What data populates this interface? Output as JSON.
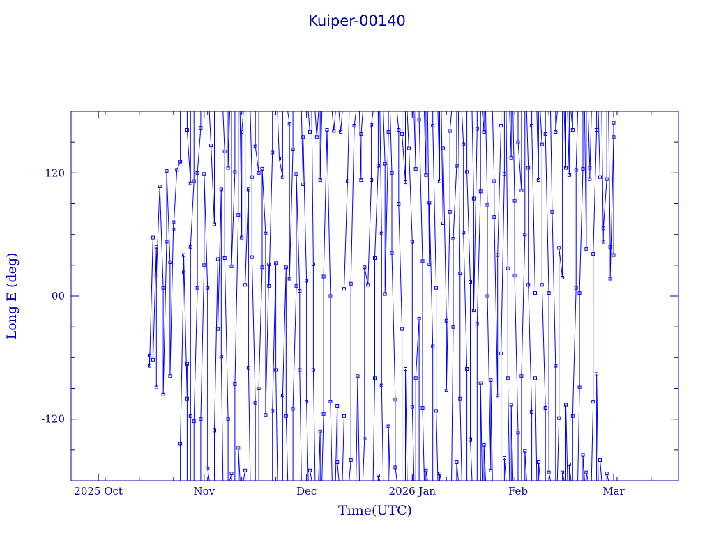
{
  "chart_data": {
    "type": "line",
    "title": "Kuiper-00140",
    "xlabel": "Time(UTC)",
    "ylabel": "Long E (deg)",
    "x_range": [
      "2025-09-23",
      "2026-03-20"
    ],
    "ylim": [
      -180,
      180
    ],
    "x_ticks": [
      {
        "date": "2025-10-01",
        "label": "2025 Oct"
      },
      {
        "date": "2025-11-01",
        "label": "Nov"
      },
      {
        "date": "2025-12-01",
        "label": "Dec"
      },
      {
        "date": "2026-01-01",
        "label": "2026 Jan"
      },
      {
        "date": "2026-02-01",
        "label": "Feb"
      },
      {
        "date": "2026-03-01",
        "label": "Mar"
      }
    ],
    "y_ticks": [
      {
        "value": 120,
        "label": "120"
      },
      {
        "value": 0,
        "label": "00"
      },
      {
        "value": -120,
        "label": "-120"
      }
    ],
    "grid": false,
    "legend": "none",
    "marker": "open-square",
    "series": [
      {
        "values": [
          [
            "2025-10-16",
            -58
          ],
          [
            "2025-10-16",
            -68
          ],
          [
            "2025-10-17",
            57
          ],
          [
            "2025-10-17",
            -62
          ],
          [
            "2025-10-18",
            48
          ],
          [
            "2025-10-18",
            -89
          ],
          [
            "2025-10-18",
            20
          ],
          [
            "2025-10-19",
            107
          ],
          [
            "2025-10-20",
            8
          ],
          [
            "2025-10-20",
            -96
          ],
          [
            "2025-10-21",
            53
          ],
          [
            "2025-10-21",
            122
          ],
          [
            "2025-10-22",
            33
          ],
          [
            "2025-10-22",
            -78
          ],
          [
            "2025-10-23",
            72
          ],
          [
            "2025-10-23",
            65
          ],
          [
            "2025-10-24",
            123
          ],
          [
            "2025-10-25",
            131
          ],
          [
            "2025-10-25",
            -144
          ],
          [
            "2025-10-26",
            23
          ],
          [
            "2025-10-26",
            40
          ],
          [
            "2025-10-27",
            -100
          ],
          [
            "2025-10-27",
            -66
          ],
          [
            "2025-10-27",
            162
          ],
          [
            "2025-10-28",
            110
          ],
          [
            "2025-10-28",
            -117
          ],
          [
            "2025-10-28",
            48
          ],
          [
            "2025-10-29",
            112
          ],
          [
            "2025-10-29",
            -122
          ],
          [
            "2025-10-30",
            8
          ],
          [
            "2025-10-30",
            120
          ],
          [
            "2025-10-31",
            164
          ],
          [
            "2025-10-31",
            -120
          ],
          [
            "2025-11-01",
            30
          ],
          [
            "2025-11-01",
            119
          ],
          [
            "2025-11-02",
            8
          ],
          [
            "2025-11-02",
            -168
          ],
          [
            "2025-11-03",
            147
          ],
          [
            "2025-11-04",
            70
          ],
          [
            "2025-11-04",
            -131
          ],
          [
            "2025-11-05",
            36
          ],
          [
            "2025-11-05",
            -32
          ],
          [
            "2025-11-06",
            104
          ],
          [
            "2025-11-06",
            -59
          ],
          [
            "2025-11-07",
            141
          ],
          [
            "2025-11-07",
            37
          ],
          [
            "2025-11-08",
            -120
          ],
          [
            "2025-11-08",
            125
          ],
          [
            "2025-11-09",
            -173
          ],
          [
            "2025-11-09",
            29
          ],
          [
            "2025-11-10",
            121
          ],
          [
            "2025-11-10",
            -86
          ],
          [
            "2025-11-11",
            79
          ],
          [
            "2025-11-11",
            -148
          ],
          [
            "2025-11-12",
            57
          ],
          [
            "2025-11-12",
            160
          ],
          [
            "2025-11-13",
            -170
          ],
          [
            "2025-11-13",
            11
          ],
          [
            "2025-11-14",
            104
          ],
          [
            "2025-11-14",
            -70
          ],
          [
            "2025-11-15",
            116
          ],
          [
            "2025-11-15",
            38
          ],
          [
            "2025-11-16",
            -104
          ],
          [
            "2025-11-16",
            146
          ],
          [
            "2025-11-17",
            120
          ],
          [
            "2025-11-17",
            -90
          ],
          [
            "2025-11-18",
            28
          ],
          [
            "2025-11-18",
            124
          ],
          [
            "2025-11-19",
            61
          ],
          [
            "2025-11-19",
            -116
          ],
          [
            "2025-11-20",
            31
          ],
          [
            "2025-11-20",
            10
          ],
          [
            "2025-11-21",
            140
          ],
          [
            "2025-11-21",
            -112
          ],
          [
            "2025-11-22",
            32
          ],
          [
            "2025-11-22",
            -72
          ],
          [
            "2025-11-23",
            134
          ],
          [
            "2025-11-24",
            116
          ],
          [
            "2025-11-24",
            -97
          ],
          [
            "2025-11-25",
            28
          ],
          [
            "2025-11-25",
            -117
          ],
          [
            "2025-11-26",
            168
          ],
          [
            "2025-11-26",
            17
          ],
          [
            "2025-11-27",
            143
          ],
          [
            "2025-11-27",
            -110
          ],
          [
            "2025-11-28",
            10
          ],
          [
            "2025-11-28",
            119
          ],
          [
            "2025-11-29",
            5
          ],
          [
            "2025-11-29",
            -72
          ],
          [
            "2025-11-30",
            109
          ],
          [
            "2025-11-30",
            155
          ],
          [
            "2025-12-01",
            15
          ],
          [
            "2025-12-01",
            -103
          ],
          [
            "2025-12-02",
            160
          ],
          [
            "2025-12-02",
            -170
          ],
          [
            "2025-12-03",
            31
          ],
          [
            "2025-12-03",
            -72
          ],
          [
            "2025-12-04",
            155
          ],
          [
            "2025-12-05",
            -132
          ],
          [
            "2025-12-05",
            113
          ],
          [
            "2025-12-06",
            -115
          ],
          [
            "2025-12-06",
            19
          ],
          [
            "2025-12-07",
            162
          ],
          [
            "2025-12-08",
            0
          ],
          [
            "2025-12-08",
            -103
          ],
          [
            "2025-12-09",
            161
          ],
          [
            "2025-12-10",
            -107
          ],
          [
            "2025-12-10",
            -162
          ],
          [
            "2025-12-11",
            160
          ],
          [
            "2025-12-12",
            -117
          ],
          [
            "2025-12-12",
            7
          ],
          [
            "2025-12-13",
            112
          ],
          [
            "2025-12-14",
            -160
          ],
          [
            "2025-12-14",
            12
          ],
          [
            "2025-12-15",
            166
          ],
          [
            "2025-12-16",
            -78
          ],
          [
            "2025-12-17",
            113
          ],
          [
            "2025-12-17",
            158
          ],
          [
            "2025-12-18",
            -139
          ],
          [
            "2025-12-18",
            28
          ],
          [
            "2025-12-19",
            11
          ],
          [
            "2025-12-20",
            113
          ],
          [
            "2025-12-20",
            167
          ],
          [
            "2025-12-21",
            -80
          ],
          [
            "2025-12-21",
            37
          ],
          [
            "2025-12-22",
            127
          ],
          [
            "2025-12-22",
            -175
          ],
          [
            "2025-12-23",
            61
          ],
          [
            "2025-12-23",
            -87
          ],
          [
            "2025-12-24",
            129
          ],
          [
            "2025-12-24",
            2
          ],
          [
            "2025-12-25",
            160
          ],
          [
            "2025-12-25",
            -127
          ],
          [
            "2025-12-26",
            120
          ],
          [
            "2025-12-26",
            42
          ],
          [
            "2025-12-27",
            -101
          ],
          [
            "2025-12-27",
            -167
          ],
          [
            "2025-12-28",
            162
          ],
          [
            "2025-12-28",
            90
          ],
          [
            "2025-12-29",
            -32
          ],
          [
            "2025-12-29",
            158
          ],
          [
            "2025-12-30",
            111
          ],
          [
            "2025-12-30",
            -71
          ],
          [
            "2025-12-31",
            144
          ],
          [
            "2026-01-01",
            53
          ],
          [
            "2026-01-01",
            -108
          ],
          [
            "2026-01-02",
            124
          ],
          [
            "2026-01-02",
            -80
          ],
          [
            "2026-01-03",
            -22
          ],
          [
            "2026-01-03",
            172
          ],
          [
            "2026-01-04",
            34
          ],
          [
            "2026-01-04",
            -109
          ],
          [
            "2026-01-05",
            118
          ],
          [
            "2026-01-05",
            -170
          ],
          [
            "2026-01-06",
            31
          ],
          [
            "2026-01-06",
            91
          ],
          [
            "2026-01-07",
            -49
          ],
          [
            "2026-01-07",
            166
          ],
          [
            "2026-01-08",
            8
          ],
          [
            "2026-01-08",
            -112
          ],
          [
            "2026-01-09",
            112
          ],
          [
            "2026-01-09",
            -173
          ],
          [
            "2026-01-10",
            71
          ],
          [
            "2026-01-10",
            144
          ],
          [
            "2026-01-11",
            -24
          ],
          [
            "2026-01-11",
            -92
          ],
          [
            "2026-01-12",
            82
          ],
          [
            "2026-01-12",
            161
          ],
          [
            "2026-01-13",
            -30
          ],
          [
            "2026-01-13",
            56
          ],
          [
            "2026-01-14",
            127
          ],
          [
            "2026-01-14",
            -162
          ],
          [
            "2026-01-15",
            22
          ],
          [
            "2026-01-15",
            -100
          ],
          [
            "2026-01-16",
            148
          ],
          [
            "2026-01-16",
            62
          ],
          [
            "2026-01-17",
            -71
          ],
          [
            "2026-01-17",
            121
          ],
          [
            "2026-01-18",
            14
          ],
          [
            "2026-01-18",
            -140
          ],
          [
            "2026-01-19",
            95
          ],
          [
            "2026-01-19",
            -14
          ],
          [
            "2026-01-20",
            163
          ],
          [
            "2026-01-20",
            -27
          ],
          [
            "2026-01-21",
            102
          ],
          [
            "2026-01-21",
            -85
          ],
          [
            "2026-01-22",
            160
          ],
          [
            "2026-01-22",
            -145
          ],
          [
            "2026-01-23",
            89
          ],
          [
            "2026-01-23",
            0
          ],
          [
            "2026-01-24",
            -170
          ],
          [
            "2026-01-24",
            -82
          ],
          [
            "2026-01-25",
            112
          ],
          [
            "2026-01-25",
            77
          ],
          [
            "2026-01-26",
            -97
          ],
          [
            "2026-01-26",
            40
          ],
          [
            "2026-01-27",
            166
          ],
          [
            "2026-01-27",
            -56
          ],
          [
            "2026-01-28",
            119
          ],
          [
            "2026-01-28",
            -158
          ],
          [
            "2026-01-29",
            27
          ],
          [
            "2026-01-29",
            -80
          ],
          [
            "2026-01-30",
            135
          ],
          [
            "2026-01-30",
            -106
          ],
          [
            "2026-01-31",
            93
          ],
          [
            "2026-01-31",
            20
          ],
          [
            "2026-02-01",
            -133
          ],
          [
            "2026-02-01",
            150
          ],
          [
            "2026-02-02",
            103
          ],
          [
            "2026-02-02",
            -78
          ],
          [
            "2026-02-03",
            60
          ],
          [
            "2026-02-03",
            -151
          ],
          [
            "2026-02-04",
            125
          ],
          [
            "2026-02-04",
            11
          ],
          [
            "2026-02-05",
            -113
          ],
          [
            "2026-02-05",
            166
          ],
          [
            "2026-02-06",
            3
          ],
          [
            "2026-02-06",
            -80
          ],
          [
            "2026-02-07",
            113
          ],
          [
            "2026-02-07",
            -162
          ],
          [
            "2026-02-08",
            148
          ],
          [
            "2026-02-08",
            11
          ],
          [
            "2026-02-09",
            -109
          ],
          [
            "2026-02-09",
            158
          ],
          [
            "2026-02-10",
            3
          ],
          [
            "2026-02-10",
            -172
          ],
          [
            "2026-02-11",
            82
          ],
          [
            "2026-02-12",
            -68
          ],
          [
            "2026-02-12",
            160
          ],
          [
            "2026-02-13",
            -119
          ],
          [
            "2026-02-13",
            47
          ],
          [
            "2026-02-14",
            18
          ],
          [
            "2026-02-14",
            -172
          ],
          [
            "2026-02-15",
            125
          ],
          [
            "2026-02-15",
            -106
          ],
          [
            "2026-02-16",
            118
          ],
          [
            "2026-02-16",
            -164
          ],
          [
            "2026-02-17",
            162
          ],
          [
            "2026-02-17",
            -117
          ],
          [
            "2026-02-18",
            8
          ],
          [
            "2026-02-18",
            123
          ],
          [
            "2026-02-19",
            -89
          ],
          [
            "2026-02-19",
            3
          ],
          [
            "2026-02-20",
            124
          ],
          [
            "2026-02-20",
            -155
          ],
          [
            "2026-02-21",
            46
          ],
          [
            "2026-02-21",
            -172
          ],
          [
            "2026-02-22",
            125
          ],
          [
            "2026-02-22",
            114
          ],
          [
            "2026-02-23",
            -103
          ],
          [
            "2026-02-23",
            41
          ],
          [
            "2026-02-24",
            162
          ],
          [
            "2026-02-24",
            -76
          ],
          [
            "2026-02-25",
            116
          ],
          [
            "2026-02-25",
            -160
          ],
          [
            "2026-02-26",
            53
          ],
          [
            "2026-02-26",
            66
          ],
          [
            "2026-02-27",
            114
          ],
          [
            "2026-02-27",
            -173
          ],
          [
            "2026-02-28",
            48
          ],
          [
            "2026-02-28",
            17
          ],
          [
            "2026-03-01",
            155
          ],
          [
            "2026-03-01",
            40
          ],
          [
            "2026-03-01",
            169
          ]
        ]
      }
    ]
  }
}
